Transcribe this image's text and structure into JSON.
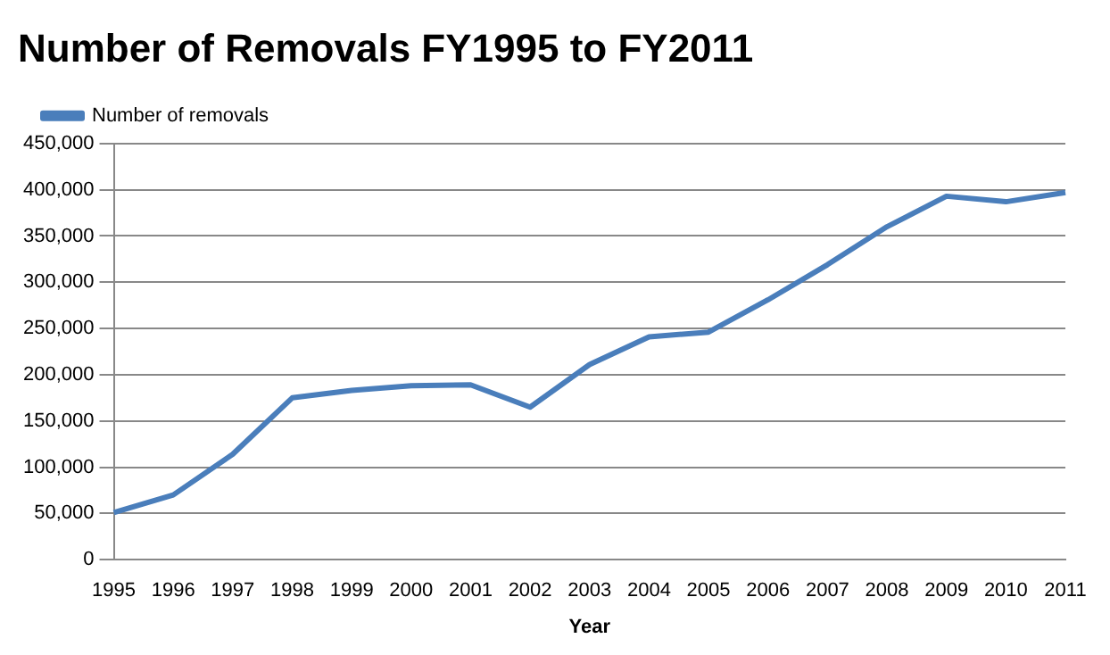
{
  "chart_data": {
    "type": "line",
    "title": "Number of Removals FY1995 to FY2011",
    "xlabel": "Year",
    "categories": [
      "1995",
      "1996",
      "1997",
      "1998",
      "1999",
      "2000",
      "2001",
      "2002",
      "2003",
      "2004",
      "2005",
      "2006",
      "2007",
      "2008",
      "2009",
      "2010",
      "2011"
    ],
    "series": [
      {
        "name": "Number of removals",
        "color": "#4a7ebb",
        "values": [
          51000,
          70000,
          114000,
          175000,
          183000,
          188000,
          189000,
          165000,
          211000,
          241000,
          246000,
          281000,
          319000,
          360000,
          393000,
          387000,
          397000
        ]
      }
    ],
    "ylim": [
      0,
      450000
    ],
    "yticks": [
      0,
      {
        "value": 50000,
        "label": "50,000"
      },
      {
        "value": 100000,
        "label": "100,000"
      },
      {
        "value": 150000,
        "label": "150,000"
      },
      {
        "value": 200000,
        "label": "200,000"
      },
      {
        "value": 250000,
        "label": "250,000"
      },
      {
        "value": 300000,
        "label": "300,000"
      },
      {
        "value": 350000,
        "label": "350,000"
      },
      {
        "value": 400000,
        "label": "400,000"
      },
      {
        "value": 450000,
        "label": "450,000"
      }
    ],
    "grid": "y",
    "legend": "top left",
    "marker": "none",
    "line_style": "solid"
  }
}
